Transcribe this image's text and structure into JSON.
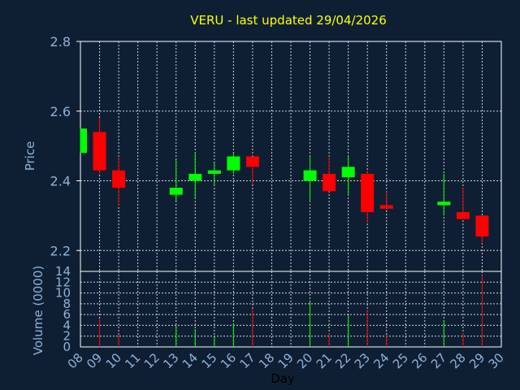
{
  "colors": {
    "background": "#0f1f33",
    "title": "#ffff00",
    "axis_text": "#8db3d9",
    "axis_line": "#ffffff",
    "grid": "#ffffff",
    "up": "#00ff00",
    "down": "#ff0000"
  },
  "chart_data": [
    {
      "type": "candlestick",
      "title": "VERU - last updated 29/04/2026",
      "ylabel": "Price",
      "ylim": [
        2.14,
        2.8
      ],
      "yticks": [
        "2.2",
        "2.4",
        "2.6",
        "2.8"
      ],
      "grid": true,
      "x": [
        "08",
        "09",
        "10",
        "13",
        "14",
        "15",
        "16",
        "17",
        "20",
        "21",
        "22",
        "23",
        "24",
        "27",
        "28",
        "29"
      ],
      "open": [
        2.48,
        2.54,
        2.43,
        2.36,
        2.4,
        2.42,
        2.43,
        2.47,
        2.4,
        2.42,
        2.41,
        2.42,
        2.33,
        2.33,
        2.31,
        2.3
      ],
      "high": [
        2.55,
        2.58,
        2.47,
        2.46,
        2.48,
        2.45,
        2.48,
        2.47,
        2.47,
        2.47,
        2.47,
        2.43,
        2.37,
        2.42,
        2.38,
        2.3
      ],
      "low": [
        2.48,
        2.42,
        2.33,
        2.34,
        2.35,
        2.39,
        2.42,
        2.39,
        2.34,
        2.37,
        2.36,
        2.28,
        2.32,
        2.3,
        2.29,
        2.22
      ],
      "close": [
        2.55,
        2.43,
        2.38,
        2.38,
        2.42,
        2.43,
        2.47,
        2.44,
        2.43,
        2.37,
        2.44,
        2.31,
        2.32,
        2.34,
        2.29,
        2.24
      ]
    },
    {
      "type": "bar",
      "ylabel": "Volume (0000)",
      "xlabel": "Day",
      "ylim": [
        0,
        14
      ],
      "yticks": [
        "0",
        "2",
        "4",
        "6",
        "8",
        "10",
        "12",
        "14"
      ],
      "xticks": [
        "08",
        "09",
        "10",
        "11",
        "12",
        "13",
        "14",
        "15",
        "16",
        "17",
        "18",
        "19",
        "20",
        "21",
        "22",
        "23",
        "24",
        "25",
        "26",
        "27",
        "28",
        "29",
        "30"
      ],
      "grid": true,
      "x": [
        "09",
        "10",
        "13",
        "14",
        "15",
        "16",
        "17",
        "20",
        "21",
        "22",
        "23",
        "24",
        "27",
        "28",
        "29"
      ],
      "values": [
        5.2,
        2.3,
        4.0,
        3.3,
        1.9,
        4.2,
        7.0,
        8.3,
        2.5,
        5.9,
        6.9,
        2.2,
        5.0,
        2.5,
        13.3
      ],
      "direction": [
        "down",
        "down",
        "up",
        "up",
        "up",
        "up",
        "down",
        "up",
        "down",
        "up",
        "down",
        "down",
        "up",
        "down",
        "down"
      ]
    }
  ]
}
